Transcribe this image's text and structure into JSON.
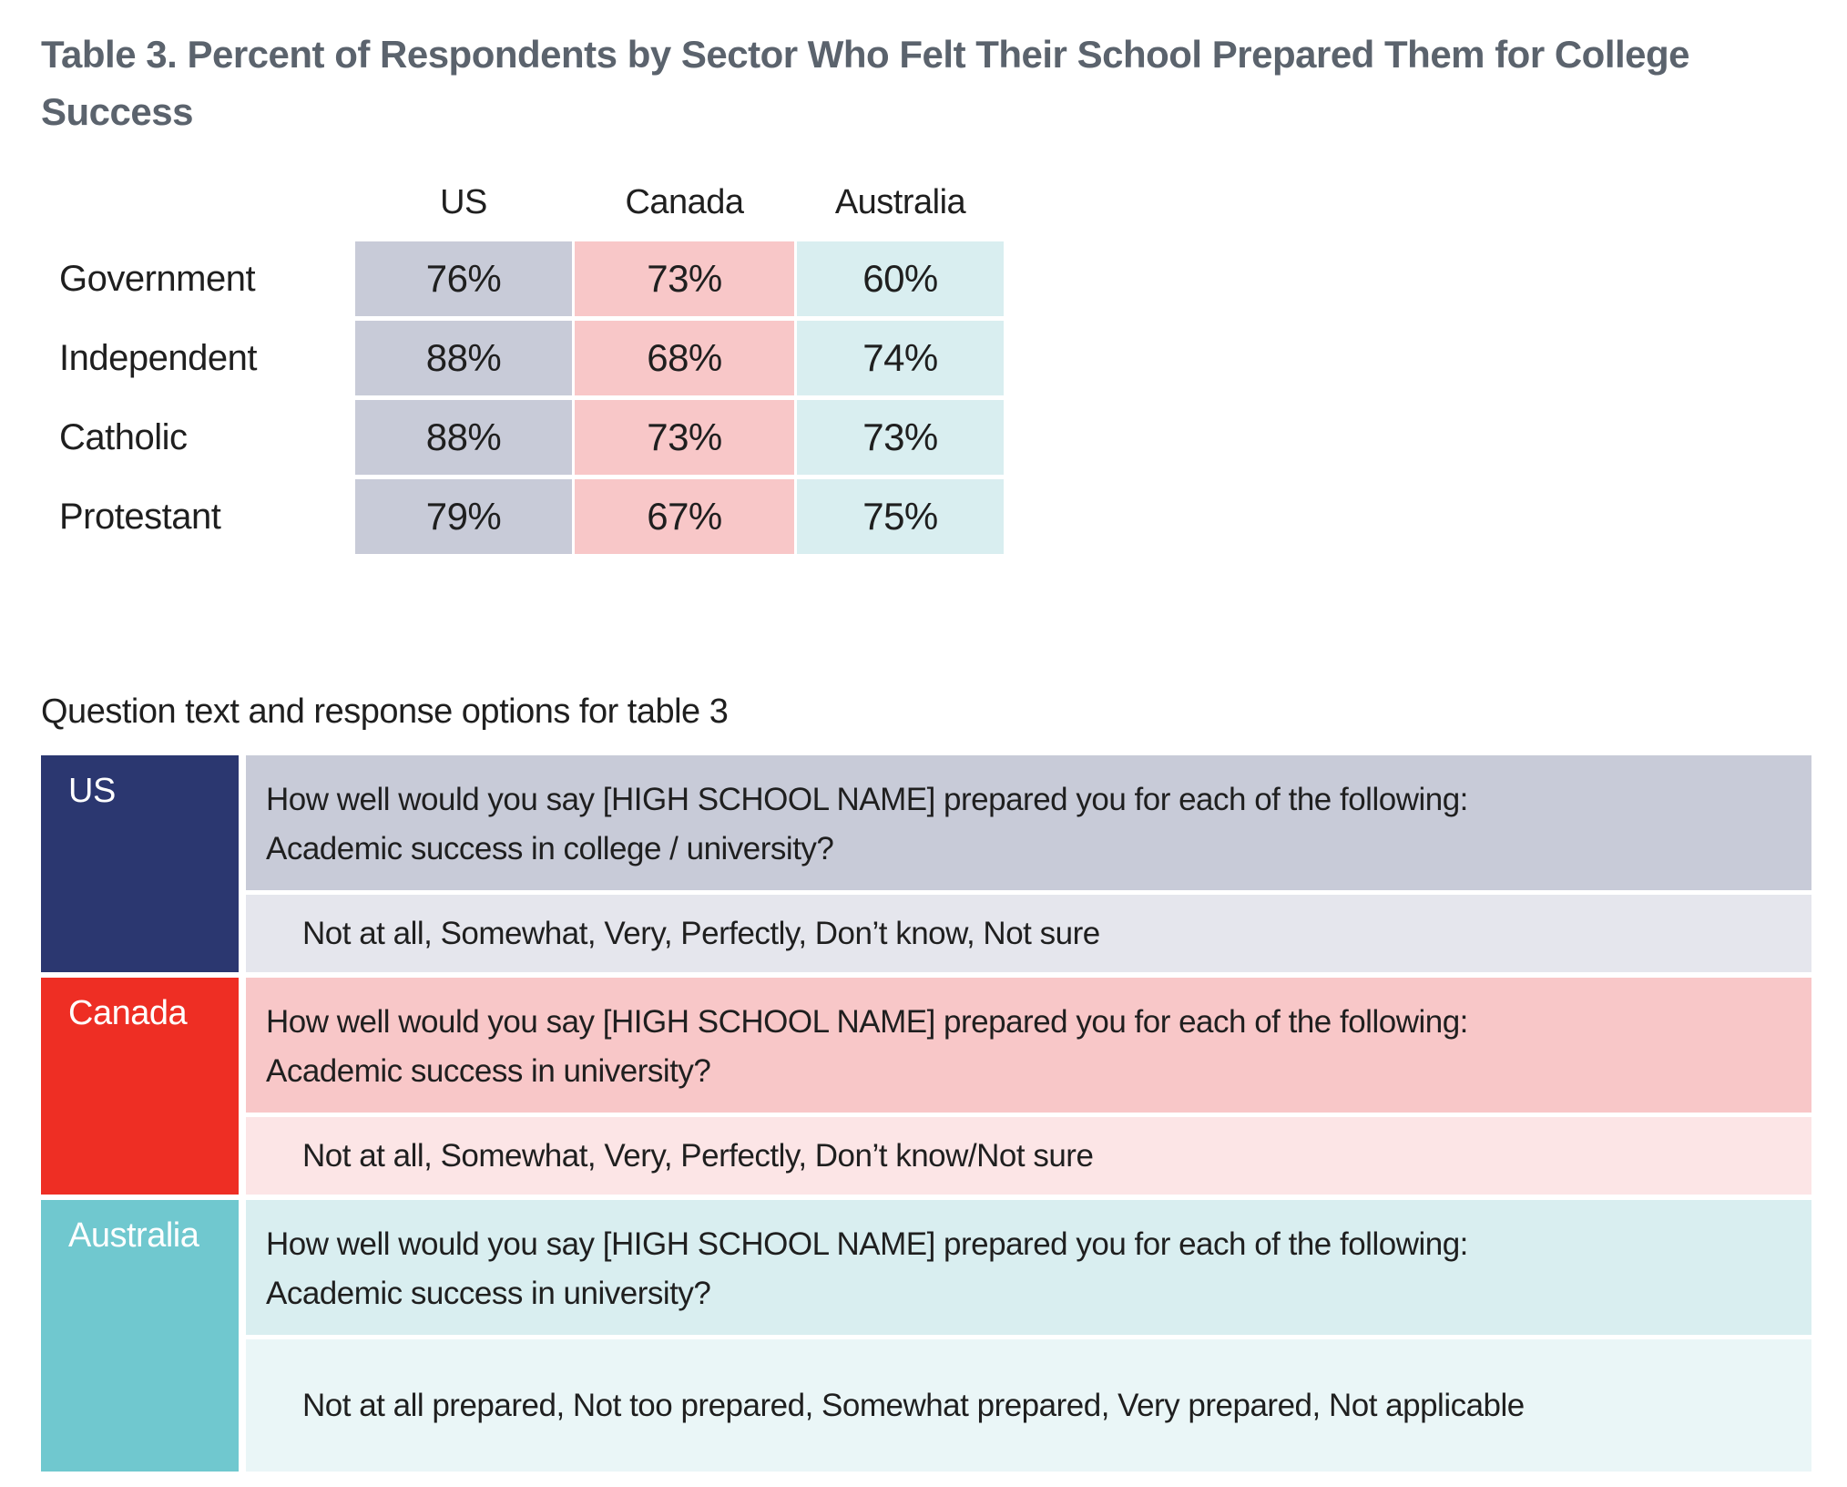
{
  "page": {
    "title": "Table 3. Percent of Respondents by Sector Who Felt Their School Prepared Them for College Success",
    "section_heading": "Question text and response options for table 3"
  },
  "summary_table": {
    "columns": [
      "US",
      "Canada",
      "Australia"
    ],
    "rows": [
      {
        "label": "Government",
        "values": [
          "76%",
          "73%",
          "60%"
        ]
      },
      {
        "label": "Independent",
        "values": [
          "88%",
          "68%",
          "74%"
        ]
      },
      {
        "label": "Catholic",
        "values": [
          "88%",
          "73%",
          "73%"
        ]
      },
      {
        "label": "Protestant",
        "values": [
          "79%",
          "67%",
          "75%"
        ]
      }
    ]
  },
  "question_table": {
    "blocks": [
      {
        "label": "US",
        "question": "How well would you say [HIGH SCHOOL NAME] prepared you for each of the following: Academic success in college / university?",
        "responses": "Not at all, Somewhat, Very, Perfectly, Don’t know, Not sure"
      },
      {
        "label": "Canada",
        "question": "How well would you say [HIGH SCHOOL NAME] prepared you for each of the following: Academic success in university?",
        "responses": "Not at all, Somewhat, Very, Perfectly, Don’t know/Not sure"
      },
      {
        "label": "Australia",
        "question": "How well would you say [HIGH SCHOOL NAME] prepared you for each of the following: Academic success in university?",
        "responses": "Not at all prepared, Not too prepared, Somewhat prepared, Very prepared, Not applicable"
      }
    ]
  },
  "colors": {
    "title_text": "#5b636d",
    "body_text": "#1f1f1f",
    "us_navy": "#2b3770",
    "canada_red": "#ee2e24",
    "australia_teal": "#70c8cf",
    "us_cell": "#c8cbd8",
    "us_cell_light": "#e5e6ed",
    "canada_cell": "#f8c7c8",
    "canada_cell_light": "#fce5e6",
    "australia_cell": "#d9eef0",
    "australia_cell_light": "#eaf6f7"
  }
}
